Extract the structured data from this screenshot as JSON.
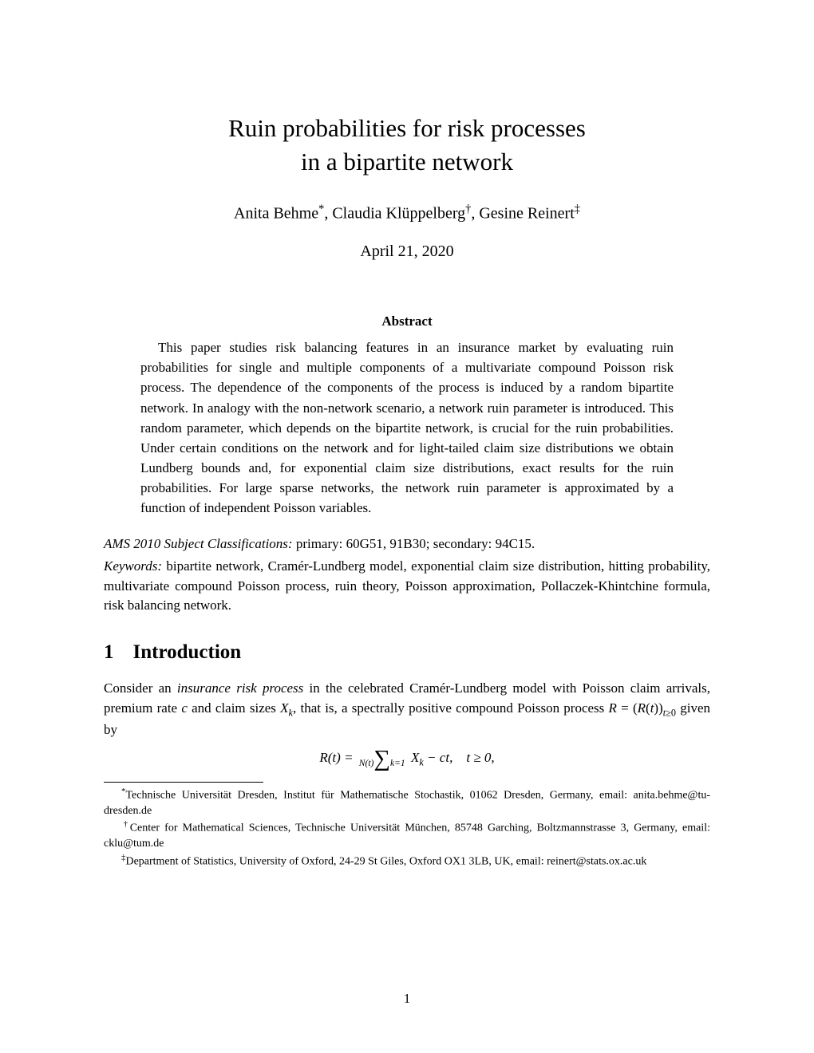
{
  "title_line1": "Ruin probabilities for risk processes",
  "title_line2": "in a bipartite network",
  "authors_html": "Anita Behme<span class='sup-note'>*</span>, Claudia Klüppelberg<span class='sup-note'>†</span>, Gesine Reinert<span class='sup-note'>‡</span>",
  "date": "April 21, 2020",
  "abstract_heading": "Abstract",
  "abstract_body": "This paper studies risk balancing features in an insurance market by evaluating ruin probabilities for single and multiple components of a multivariate compound Poisson risk process. The dependence of the components of the process is induced by a random bipartite network. In analogy with the non-network scenario, a network ruin parameter is introduced. This random parameter, which depends on the bipartite network, is crucial for the ruin probabilities. Under certain conditions on the network and for light-tailed claim size distributions we obtain Lundberg bounds and, for exponential claim size distributions, exact results for the ruin probabilities. For large sparse networks, the network ruin parameter is approximated by a function of independent Poisson variables.",
  "ams_label": "AMS 2010 Subject Classifications:",
  "ams_text": "  primary:  60G51, 91B30; secondary:  94C15.",
  "keywords_label": "Keywords:",
  "keywords_text": " bipartite network, Cramér-Lundberg model, exponential claim size distribution, hitting probability, multivariate compound Poisson process, ruin theory, Poisson approximation, Pollaczek-Khintchine formula, risk balancing network.",
  "section_number": "1",
  "section_title": "Introduction",
  "para1_html": "Consider an <em>insurance risk process</em> in the celebrated Cramér-Lundberg model with Poisson claim arrivals, premium rate <em>c</em> and claim sizes <em>X<sub>k</sub></em>, that is, a spectrally positive compound Poisson process <em>R</em> = (<em>R</em>(<em>t</em>))<sub><em>t</em>≥0</sub> given by",
  "equation_html": "<span class='ital'>R</span>(<span class='ital'>t</span>) = <span class='sum-block'><span class='sum-top'>N(t)</span><span class='sum-sym'>∑</span><span class='sum-bot'>k=1</span></span> <span class='ital'>X<sub>k</sub></span> − <span class='ital'>ct</span>,&nbsp;&nbsp;&nbsp; <span class='ital'>t</span> ≥ 0,",
  "footnote1_sym": "*",
  "footnote1_text": "Technische Universität Dresden, Institut für Mathematische Stochastik, 01062 Dresden, Germany, email: anita.behme@tu-dresden.de",
  "footnote2_sym": "†",
  "footnote2_text": "Center for Mathematical Sciences, Technische Universität München, 85748 Garching, Boltzmannstrasse 3, Germany, email: cklu@tum.de",
  "footnote3_sym": "‡",
  "footnote3_text": "Department of Statistics, University of Oxford, 24-29 St Giles, Oxford OX1 3LB, UK, email: reinert@stats.ox.ac.uk",
  "page_number": "1"
}
